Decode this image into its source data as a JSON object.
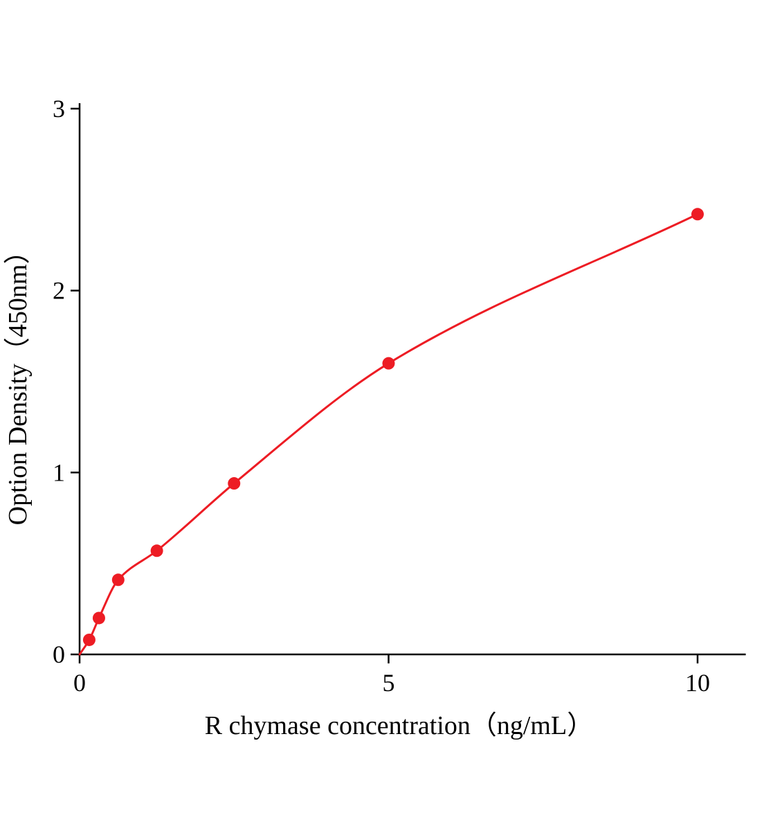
{
  "chart_data": {
    "type": "scatter",
    "title": "",
    "xlabel": "R chymase concentration（ng/mL）",
    "ylabel": "Option Density（450nm）",
    "x": [
      0.156,
      0.313,
      0.625,
      1.25,
      2.5,
      5,
      10
    ],
    "y": [
      0.08,
      0.2,
      0.41,
      0.57,
      0.94,
      1.6,
      2.42
    ],
    "curve_start": [
      0,
      0
    ],
    "xticks": [
      0,
      5,
      10
    ],
    "yticks": [
      0,
      1,
      2,
      3
    ],
    "xlim": [
      0,
      10.78
    ],
    "ylim": [
      0,
      3.03
    ],
    "grid": false,
    "legend_position": "none",
    "colors": {
      "curve": "#ed1c24",
      "point": "#ed1c24",
      "axis": "#000000"
    },
    "marker_radius": 9
  }
}
